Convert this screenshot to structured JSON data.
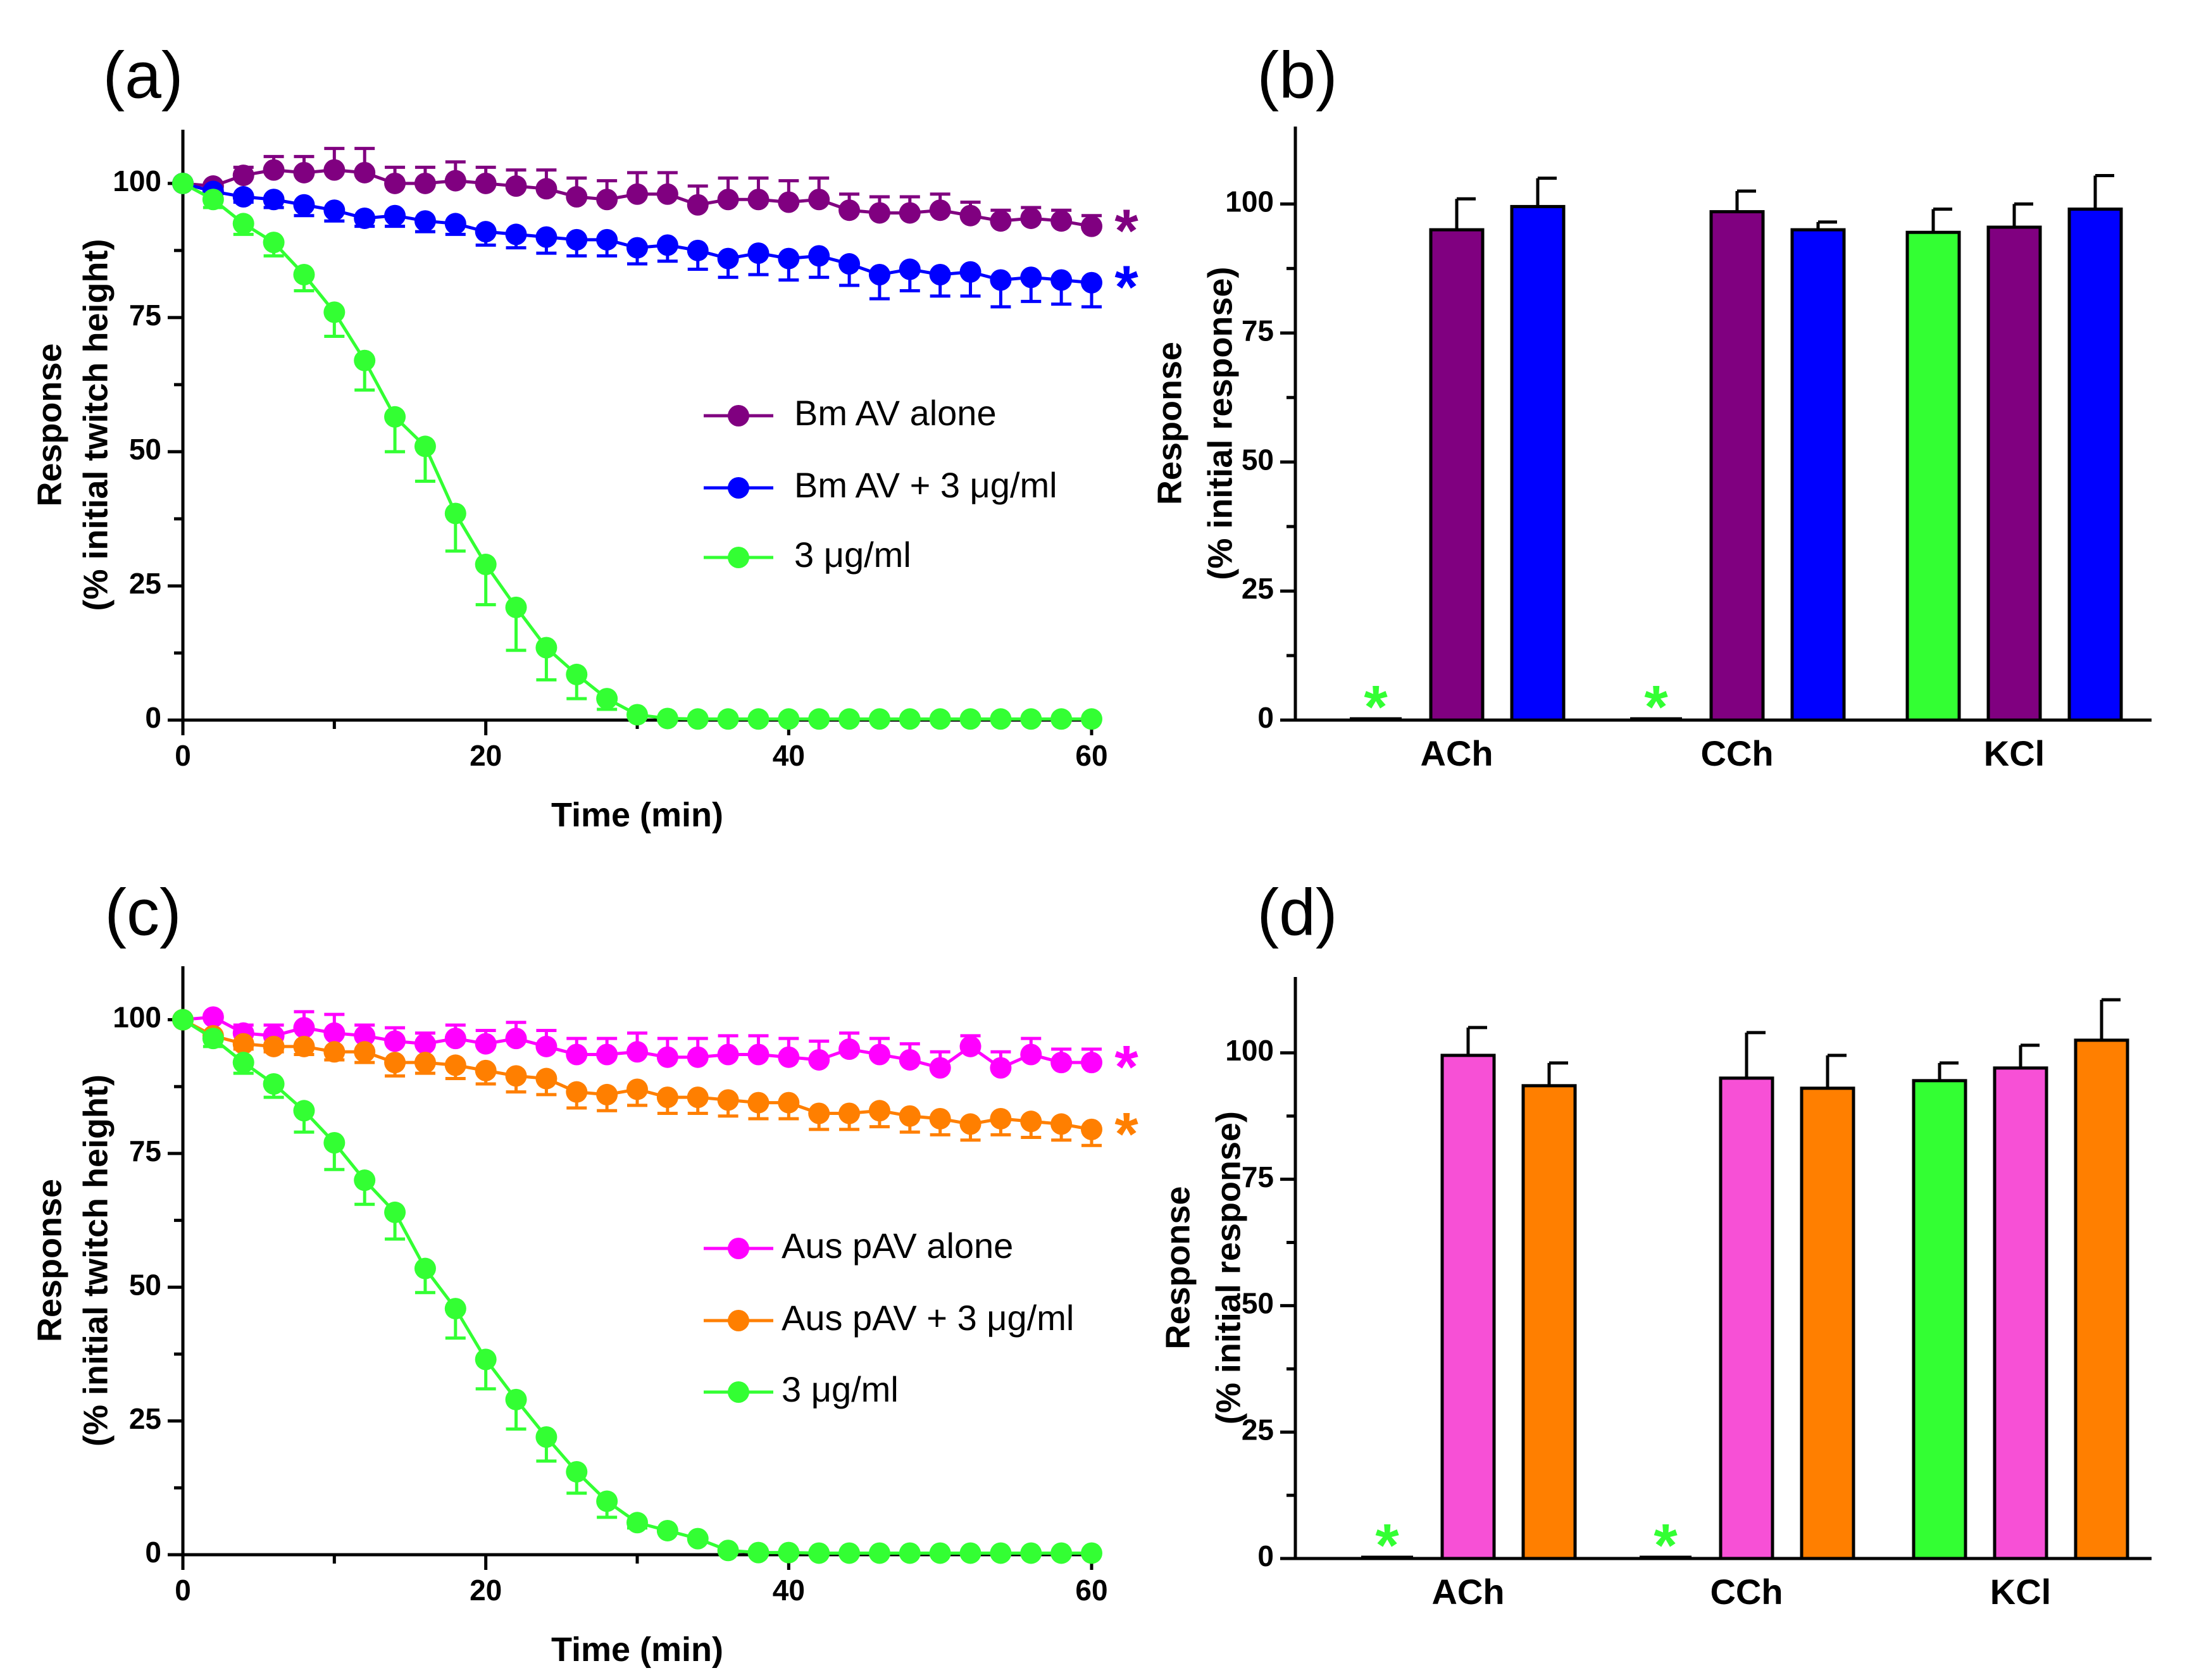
{
  "chart_data": [
    {
      "panel_label": "(a)",
      "type": "line",
      "xlabel": "Time (min)",
      "ylabel_line1": "Response",
      "ylabel_line2": "(% initial twitch height)",
      "xlim": [
        0,
        60
      ],
      "ylim": [
        0,
        110
      ],
      "xticks": [
        "0",
        "20",
        "40",
        "60"
      ],
      "yticks": [
        "0",
        "25",
        "50",
        "75",
        "100"
      ],
      "legend_position": "center-right",
      "x": [
        0,
        2,
        4,
        6,
        8,
        10,
        12,
        14,
        16,
        18,
        20,
        22,
        24,
        26,
        28,
        30,
        32,
        34,
        36,
        38,
        40,
        42,
        44,
        46,
        48,
        50,
        52,
        54,
        56,
        58,
        60
      ],
      "series": [
        {
          "name": "Bm AV alone",
          "color": "#800080",
          "marker_color": "#800080",
          "values": [
            100,
            99.5,
            101.5,
            102.5,
            102,
            102.5,
            102,
            100,
            100,
            100.5,
            100,
            99.5,
            99,
            97.5,
            97,
            98,
            98,
            96,
            97,
            97,
            96.5,
            97,
            95,
            94.5,
            94.5,
            95,
            94,
            93,
            93.5,
            93,
            92
          ],
          "errors": [
            0,
            0.5,
            1.5,
            2.5,
            3,
            4,
            4.5,
            3,
            3,
            3.5,
            3,
            3,
            3.5,
            3.5,
            3.5,
            4,
            4,
            3.5,
            4,
            4,
            4,
            4,
            3,
            3,
            3,
            3,
            2.5,
            2,
            2,
            2,
            2
          ],
          "significance": "*"
        },
        {
          "name": "Bm AV + 3 μg/ml",
          "color": "#0000ff",
          "marker_color": "#0000ff",
          "values": [
            100,
            98.5,
            97.5,
            97,
            96,
            95,
            93.5,
            94,
            93,
            92.5,
            91,
            90.5,
            90,
            89.5,
            89.5,
            88,
            88.5,
            87.5,
            86,
            87,
            86,
            86.5,
            85,
            83,
            84,
            83,
            83.5,
            82,
            82.5,
            82,
            81.5
          ],
          "errors": [
            0,
            0.5,
            1,
            1.5,
            2,
            2,
            1.5,
            2,
            2,
            2,
            2.5,
            2.5,
            3,
            3,
            3,
            3,
            3,
            3.5,
            3.5,
            4,
            4,
            4,
            4,
            4.5,
            4,
            4,
            4.5,
            5,
            4.5,
            4.5,
            4.5
          ],
          "significance": "*"
        },
        {
          "name": "3 μg/ml",
          "color": "#33ff33",
          "marker_color": "#33ff33",
          "values": [
            100,
            97,
            92.5,
            89,
            83,
            76,
            67,
            56.5,
            51,
            38.5,
            29,
            21,
            13.5,
            8.5,
            4,
            1,
            0.3,
            0.2,
            0.2,
            0.2,
            0.2,
            0.2,
            0.2,
            0.2,
            0.2,
            0.2,
            0.2,
            0.2,
            0.2,
            0.2,
            0.2
          ],
          "errors": [
            0,
            1.5,
            2,
            2.5,
            3,
            4.5,
            5.5,
            6.5,
            6.5,
            7,
            7.5,
            8,
            6,
            4.5,
            2,
            0.5,
            0,
            0,
            0,
            0,
            0,
            0,
            0,
            0,
            0,
            0,
            0,
            0,
            0,
            0,
            0
          ],
          "significance": ""
        }
      ]
    },
    {
      "panel_label": "(b)",
      "type": "bar",
      "ylabel_line1": "Response",
      "ylabel_line2": "(% initial response)",
      "ylim": [
        0,
        115
      ],
      "yticks": [
        "0",
        "25",
        "50",
        "75",
        "100"
      ],
      "categories": [
        "ACh",
        "CCh",
        "KCl"
      ],
      "series": [
        {
          "name": "3 μg/ml",
          "color": "#33ff33",
          "values": [
            0,
            0.3,
            94.5
          ],
          "errors": [
            0,
            0,
            4.5
          ],
          "significance": [
            "*",
            "*",
            ""
          ]
        },
        {
          "name": "Bm AV alone",
          "color": "#800080",
          "values": [
            95,
            98.5,
            95.5
          ],
          "errors": [
            6,
            4,
            4.5
          ],
          "significance": [
            "",
            "",
            ""
          ]
        },
        {
          "name": "Bm AV + 3 μg/ml",
          "color": "#0000ff",
          "values": [
            99.5,
            95,
            99
          ],
          "errors": [
            5.5,
            1.5,
            6.5
          ],
          "significance": [
            "",
            "",
            ""
          ]
        }
      ]
    },
    {
      "panel_label": "(c)",
      "type": "line",
      "xlabel": "Time (min)",
      "ylabel_line1": "Response",
      "ylabel_line2": "(% initial twitch height)",
      "xlim": [
        0,
        60
      ],
      "ylim": [
        0,
        110
      ],
      "xticks": [
        "0",
        "20",
        "40",
        "60"
      ],
      "yticks": [
        "0",
        "25",
        "50",
        "75",
        "100"
      ],
      "legend_position": "center-right",
      "x": [
        0,
        2,
        4,
        6,
        8,
        10,
        12,
        14,
        16,
        18,
        20,
        22,
        24,
        26,
        28,
        30,
        32,
        34,
        36,
        38,
        40,
        42,
        44,
        46,
        48,
        50,
        52,
        54,
        56,
        58,
        60
      ],
      "series": [
        {
          "name": "Aus pAV alone",
          "color": "#ff00ff",
          "marker_color": "#ff00ff",
          "values": [
            100,
            100.5,
            97.5,
            97,
            98.5,
            97.5,
            97,
            96,
            95.5,
            96.5,
            95.5,
            96.5,
            95,
            93.5,
            93.5,
            94,
            93,
            93,
            93.5,
            93.5,
            93,
            92.5,
            94.5,
            93.5,
            92.5,
            91,
            95,
            91,
            93.5,
            92,
            92
          ],
          "errors": [
            0,
            0.5,
            1.5,
            2,
            3,
            3.5,
            2,
            2.5,
            2,
            2.5,
            2.5,
            3,
            3,
            3,
            3,
            3.5,
            3.5,
            3.5,
            3.5,
            3.5,
            3.5,
            3.5,
            3,
            3,
            3,
            3,
            2,
            3,
            3,
            2.5,
            2.5
          ],
          "significance": "*"
        },
        {
          "name": "Aus pAV + 3 μg/ml",
          "color": "#ff7f00",
          "marker_color": "#ff7f00",
          "values": [
            100,
            97,
            95.5,
            95,
            95,
            94,
            94,
            92,
            92,
            91.5,
            90.5,
            89.5,
            89,
            86.5,
            86,
            87,
            85.5,
            85.5,
            85,
            84.5,
            84.5,
            82.5,
            82.5,
            83,
            82,
            81.5,
            80.5,
            81.5,
            81,
            80.5,
            79.5
          ],
          "errors": [
            0,
            0.5,
            1,
            1,
            1.5,
            1.5,
            2,
            2.5,
            2,
            2.5,
            2.5,
            3,
            3,
            3,
            3,
            3,
            3,
            3,
            3,
            3,
            3,
            3,
            3,
            3,
            3,
            3,
            3,
            3,
            3,
            3,
            3
          ],
          "significance": "*"
        },
        {
          "name": "3 μg/ml",
          "color": "#33ff33",
          "marker_color": "#33ff33",
          "values": [
            100,
            96.5,
            92,
            88,
            83,
            77,
            70,
            64,
            53.5,
            46,
            36.5,
            29,
            22,
            15.5,
            10,
            6,
            4.5,
            3,
            0.8,
            0.4,
            0.4,
            0.3,
            0.3,
            0.3,
            0.3,
            0.3,
            0.3,
            0.3,
            0.3,
            0.3,
            0.3
          ],
          "errors": [
            0,
            1.5,
            2,
            2.5,
            4,
            5,
            4.5,
            5,
            4.5,
            5.5,
            5.5,
            5.5,
            4.5,
            4,
            3,
            1,
            0,
            0,
            0,
            0,
            0,
            0,
            0,
            0,
            0,
            0,
            0,
            0,
            0,
            0,
            0
          ],
          "significance": ""
        }
      ]
    },
    {
      "panel_label": "(d)",
      "type": "bar",
      "ylabel_line1": "Response",
      "ylabel_line2": "(% initial response)",
      "ylim": [
        0,
        115
      ],
      "yticks": [
        "0",
        "25",
        "50",
        "75",
        "100"
      ],
      "categories": [
        "ACh",
        "CCh",
        "KCl"
      ],
      "series": [
        {
          "name": "3 μg/ml",
          "color": "#33ff33",
          "values": [
            0,
            0,
            94.5
          ],
          "errors": [
            0,
            0,
            3.5
          ],
          "significance": [
            "*",
            "*",
            ""
          ]
        },
        {
          "name": "Aus pAV alone",
          "color": "#f750d6",
          "values": [
            99.5,
            95,
            97
          ],
          "errors": [
            5.5,
            9,
            4.5
          ],
          "significance": [
            "",
            "",
            ""
          ]
        },
        {
          "name": "Aus pAV + 3 μg/ml",
          "color": "#ff7f00",
          "values": [
            93.5,
            93,
            102.5
          ],
          "errors": [
            4.5,
            6.5,
            8
          ],
          "significance": [
            "",
            "",
            ""
          ]
        }
      ]
    }
  ]
}
